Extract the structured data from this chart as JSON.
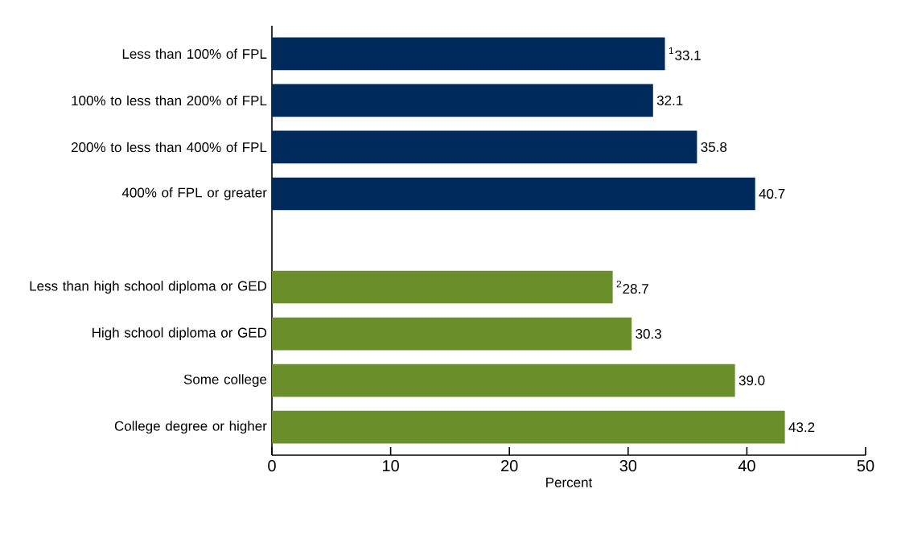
{
  "chart_data": {
    "type": "bar",
    "orientation": "horizontal",
    "xlabel": "Percent",
    "categories": [
      "Less than 100% of FPL",
      "100% to less than 200% of FPL",
      "200% to less than 400% of FPL",
      "400% of FPL or greater",
      null,
      "Less than high school diploma or GED",
      "High school diploma or GED",
      "Some college",
      "College degree or higher"
    ],
    "values": [
      33.1,
      32.1,
      35.8,
      40.7,
      null,
      28.7,
      30.3,
      39.0,
      43.2
    ],
    "colors": [
      "#002a5c",
      "#002a5c",
      "#002a5c",
      "#002a5c",
      null,
      "#6a8e2a",
      "#6a8e2a",
      "#6a8e2a",
      "#6a8e2a"
    ],
    "value_labels": [
      "$^{1}$33.1",
      "32.1",
      "35.8",
      "40.7",
      null,
      "$^{2}$28.7",
      "30.3",
      "39.0",
      "43.2"
    ],
    "xlim": [
      0,
      50
    ],
    "xticks": [
      0,
      10,
      20,
      30,
      40,
      50
    ]
  }
}
